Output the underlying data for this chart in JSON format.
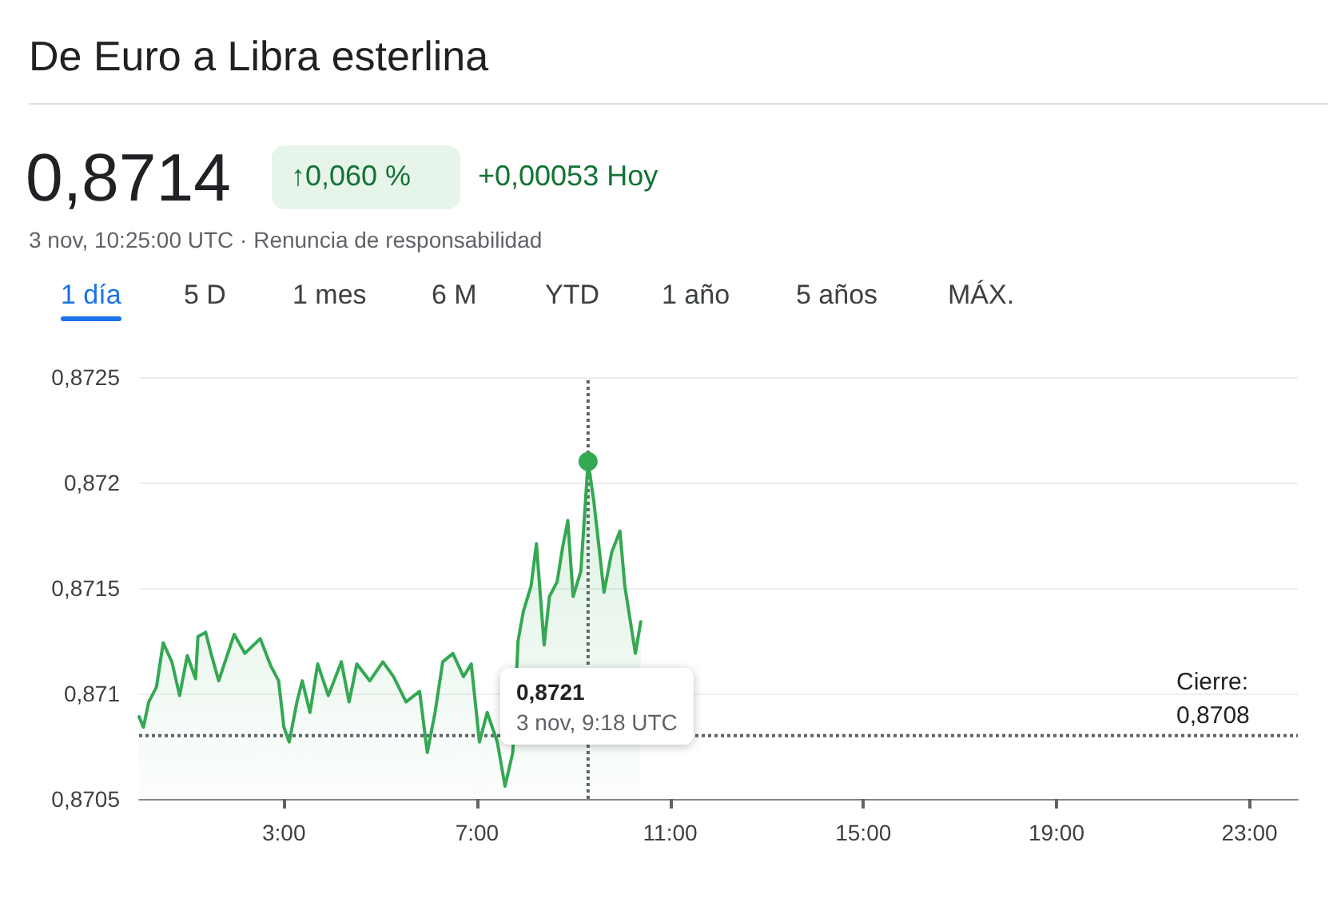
{
  "chart_data": {
    "type": "area",
    "title": "De Euro a Libra esterlina",
    "annotations": [
      "0,8714",
      "↑0,060 %",
      "+0,00053 Hoy",
      "3 nov, 10:25:00 UTC · Renuncia de responsabilidad",
      "1 día",
      "5 D",
      "1 mes",
      "6 M",
      "YTD",
      "1 año",
      "5 años",
      "MÁX.",
      "0,8721\n3 nov, 9:18 UTC"
    ],
    "series": [
      {
        "color": "#34a853",
        "x": [
          0,
          0.09,
          0.2,
          0.36,
          0.5,
          0.68,
          0.84,
          1.0,
          1.17,
          1.22,
          1.38,
          1.49,
          1.65,
          1.97,
          2.19,
          2.51,
          2.73,
          2.89,
          3.0,
          3.11,
          3.27,
          3.38,
          3.54,
          3.7,
          3.92,
          4.19,
          4.35,
          4.51,
          4.78,
          5.05,
          5.27,
          5.53,
          5.81,
          5.97,
          6.13,
          6.29,
          6.5,
          6.72,
          6.88,
          7.05,
          7.21,
          7.42,
          7.58,
          7.74,
          7.85,
          7.96,
          8.12,
          8.23,
          8.39,
          8.5,
          8.66,
          8.77,
          8.88,
          8.99,
          9.15,
          9.3,
          9.42,
          9.63,
          9.79,
          9.96,
          10.06,
          10.28,
          10.39
        ],
        "values": [
          0.87089,
          0.87084,
          0.87096,
          0.87103,
          0.87124,
          0.87115,
          0.87099,
          0.87118,
          0.87107,
          0.87127,
          0.87129,
          0.87119,
          0.87106,
          0.87128,
          0.87119,
          0.87126,
          0.87113,
          0.87106,
          0.87084,
          0.87077,
          0.87096,
          0.87106,
          0.87091,
          0.87114,
          0.87099,
          0.87115,
          0.87096,
          0.87114,
          0.87106,
          0.87115,
          0.87108,
          0.87096,
          0.87101,
          0.87072,
          0.87091,
          0.87115,
          0.87119,
          0.87108,
          0.87114,
          0.87077,
          0.87091,
          0.87077,
          0.87056,
          0.87072,
          0.87125,
          0.87139,
          0.87151,
          0.87171,
          0.87123,
          0.87146,
          0.87153,
          0.87169,
          0.87182,
          0.87146,
          0.87158,
          0.8721,
          0.87191,
          0.87148,
          0.87167,
          0.87177,
          0.87151,
          0.87119,
          0.87134
        ]
      }
    ],
    "xlim": [
      0,
      24
    ],
    "xticks": [
      {
        "value": 3,
        "label": "3:00"
      },
      {
        "value": 7,
        "label": "7:00"
      },
      {
        "value": 11,
        "label": "11:00"
      },
      {
        "value": 15,
        "label": "15:00"
      },
      {
        "value": 19,
        "label": "19:00"
      },
      {
        "value": 23,
        "label": "23:00"
      }
    ],
    "ylim": [
      0.8705,
      0.8725
    ],
    "yticks": [
      {
        "value": 0.8705,
        "label": "0,8705"
      },
      {
        "value": 0.871,
        "label": "0,871"
      },
      {
        "value": 0.8715,
        "label": "0,8715"
      },
      {
        "value": 0.872,
        "label": "0,872"
      },
      {
        "value": 0.8725,
        "label": "0,8725"
      }
    ],
    "ref_lines": [
      {
        "axis": "y",
        "value": 0.8708,
        "label": "Cierre:\n0,8708",
        "color": "#5f6368",
        "line_style": "dotted"
      },
      {
        "axis": "x",
        "value": 9.3,
        "label": null,
        "color": "#5f6368",
        "line_style": "dotted"
      }
    ],
    "grid": "y",
    "marker": "none",
    "line_style": "solid"
  }
}
